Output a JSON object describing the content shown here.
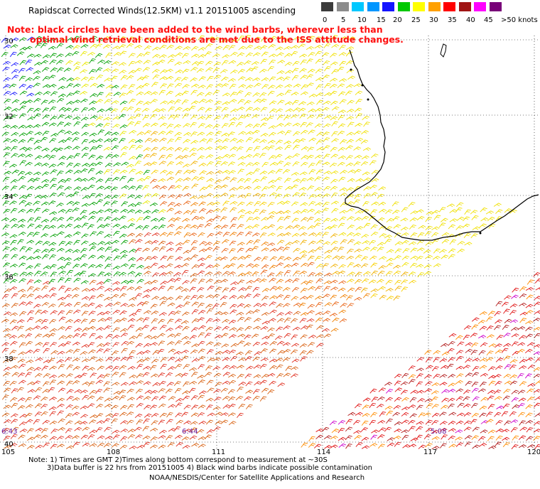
{
  "title": "Rapidscat Corrected Winds(12.5KM) v1.1 20151005 ascending",
  "note_line1": "Note: black circles have been added to the wind barbs, wherever less than",
  "note_line2": "optimal wind retrieval conditions are met due to the ISS attitude changes.",
  "scale": {
    "labels": [
      "0",
      "5",
      "10",
      "15",
      "20",
      "25",
      "30",
      "35",
      "40",
      "45",
      ">50 knots"
    ],
    "colors": [
      "#3c3c3c",
      "#8c8c8c",
      "#00c8ff",
      "#0096ff",
      "#1414ff",
      "#00c800",
      "#ffff00",
      "#ffa000",
      "#ff0000",
      "#a01414",
      "#ff00ff",
      "#780078"
    ]
  },
  "map": {
    "lat_labels": [
      "30",
      "32",
      "34",
      "36",
      "38",
      "40"
    ],
    "lon_labels": [
      "105",
      "108",
      "111",
      "114",
      "117",
      "120"
    ],
    "time_labels": [
      "6:43",
      "6:44",
      "5:08"
    ]
  },
  "footer": {
    "line1": "Note: 1) Times are GMT 2)Times along bottom correspond to measurement at ~30S",
    "line2": "3)Data buffer is 22 hrs from 20151005 4) Black wind barbs indicate possible contamination",
    "line3": "NOAA/NESDIS/Center for Satellite Applications and Research"
  }
}
